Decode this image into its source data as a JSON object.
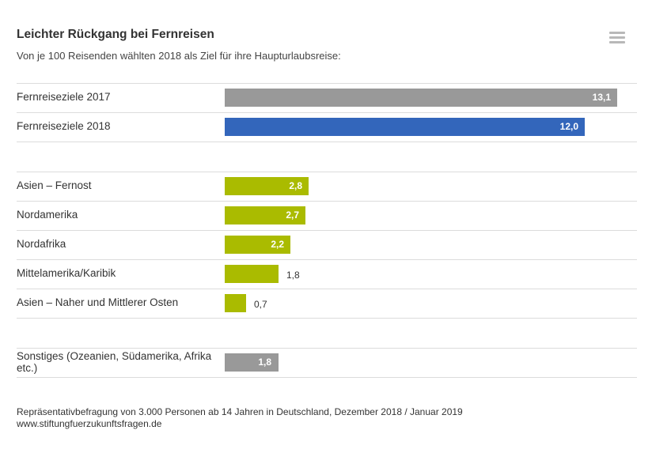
{
  "chart_data": {
    "type": "bar",
    "orientation": "horizontal",
    "title": "Leichter Rückgang bei Fernreisen",
    "subtitle": "Von je 100 Reisenden wählten 2018 als Ziel für ihre Haupturlaubsreise:",
    "xlim": [
      0,
      13.5
    ],
    "grid": false,
    "legend": "none",
    "groups": [
      {
        "rows": [
          {
            "label": "Fernreiseziele 2017",
            "value": 13.1,
            "display": "13,1",
            "color": "#999999"
          },
          {
            "label": "Fernreiseziele 2018",
            "value": 12.0,
            "display": "12,0",
            "color": "#3366bb"
          }
        ]
      },
      {
        "rows": [
          {
            "label": "Asien – Fernost",
            "value": 2.8,
            "display": "2,8",
            "color": "#aabb00"
          },
          {
            "label": "Nordamerika",
            "value": 2.7,
            "display": "2,7",
            "color": "#aabb00"
          },
          {
            "label": "Nordafrika",
            "value": 2.2,
            "display": "2,2",
            "color": "#aabb00"
          },
          {
            "label": "Mittelamerika/Karibik",
            "value": 1.8,
            "display": "1,8",
            "color": "#aabb00"
          },
          {
            "label": "Asien – Naher und Mittlerer Osten",
            "value": 0.7,
            "display": "0,7",
            "color": "#aabb00"
          }
        ]
      },
      {
        "rows": [
          {
            "label": "Sonstiges (Ozeanien, Südamerika, Afrika etc.)",
            "value": 1.8,
            "display": "1,8",
            "color": "#999999"
          }
        ]
      }
    ]
  },
  "source": {
    "line1": "Repräsentativbefragung von 3.000 Personen ab 14 Jahren in Deutschland, Dezember 2018 / Januar 2019",
    "line2": "www.stiftungfuerzukunftsfragen.de"
  },
  "menu_icon": "hamburger-menu-icon"
}
